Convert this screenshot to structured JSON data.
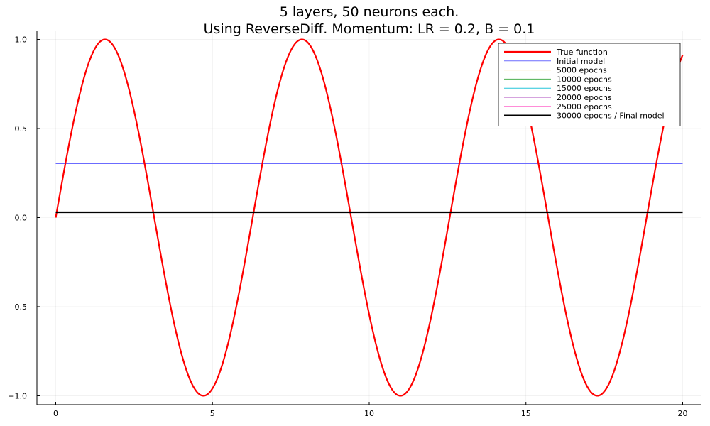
{
  "chart_data": {
    "type": "line",
    "title_line1": "5 layers, 50 neurons each.",
    "title_line2": "Using ReverseDiff. Momentum: LR = 0.2, B = 0.1",
    "xlim": [
      -0.6,
      20.6
    ],
    "ylim": [
      -1.05,
      1.05
    ],
    "x_ticks": [
      0,
      5,
      10,
      15,
      20
    ],
    "x_tick_labels": [
      "0",
      "5",
      "10",
      "15",
      "20"
    ],
    "y_ticks": [
      -1.0,
      -0.5,
      0.0,
      0.5,
      1.0
    ],
    "y_tick_labels": [
      "−1.0",
      "−0.5",
      "0.0",
      "0.5",
      "1.0"
    ],
    "grid": true,
    "legend_position": "top-right",
    "x_range": [
      0,
      20
    ],
    "series": [
      {
        "name": "True function",
        "color": "#ff0000",
        "width": 2.2,
        "kind": "sin"
      },
      {
        "name": "Initial model",
        "color": "#6b6bff",
        "width": 1,
        "kind": "constant",
        "value": 0.303
      },
      {
        "name": "5000 epochs",
        "color": "#f5c26b",
        "width": 1,
        "kind": "constant",
        "value": 0.03
      },
      {
        "name": "10000 epochs",
        "color": "#4caf50",
        "width": 1,
        "kind": "constant",
        "value": 0.03
      },
      {
        "name": "15000 epochs",
        "color": "#26c6da",
        "width": 1,
        "kind": "constant",
        "value": 0.03
      },
      {
        "name": "20000 epochs",
        "color": "#ab47bc",
        "width": 1,
        "kind": "constant",
        "value": 0.03
      },
      {
        "name": "25000 epochs",
        "color": "#ff66cc",
        "width": 1,
        "kind": "constant",
        "value": 0.03
      },
      {
        "name": "30000 epochs / Final model",
        "color": "#000000",
        "width": 2.2,
        "kind": "constant",
        "value": 0.03
      }
    ]
  }
}
